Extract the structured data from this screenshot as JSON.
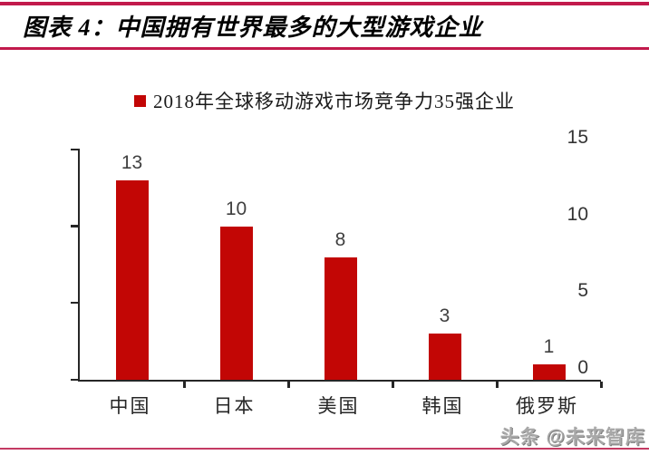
{
  "header": {
    "title": "图表 4：中国拥有世界最多的大型游戏企业"
  },
  "legend": {
    "label": "2018年全球移动游戏市场竞争力35强企业",
    "marker_color": "#c20605"
  },
  "chart_data": {
    "type": "bar",
    "title": "2018年全球移动游戏市场竞争力35强企业",
    "categories": [
      "中国",
      "日本",
      "美国",
      "韩国",
      "俄罗斯"
    ],
    "values": [
      13,
      10,
      8,
      3,
      1
    ],
    "xlabel": "",
    "ylabel": "",
    "ylim": [
      0,
      15
    ],
    "yticks": [
      0,
      5,
      10,
      15
    ],
    "bar_color": "#c20605",
    "grid": false,
    "legend_position": "top-center",
    "data_labels": true
  },
  "watermark": {
    "text": "头条 @未来智库"
  },
  "colors": {
    "accent_rule": "#c21a4c",
    "bar": "#c20605",
    "axis": "#262626",
    "value_label": "#404040"
  }
}
